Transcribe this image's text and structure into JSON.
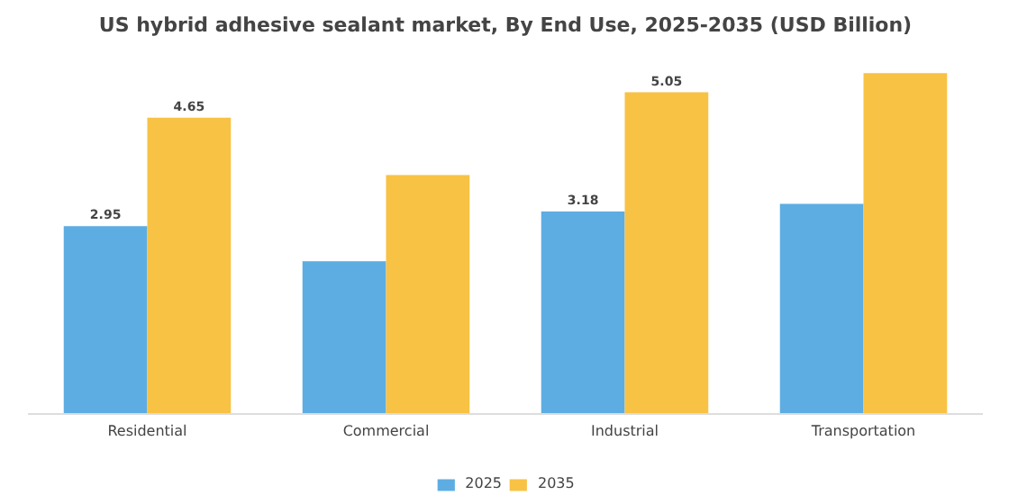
{
  "chart_data": {
    "type": "bar",
    "title": "US hybrid adhesive sealant market, By End Use, 2025-2035 (USD Billion)",
    "categories": [
      "Residential",
      "Commercial",
      "Industrial",
      "Transportation"
    ],
    "series": [
      {
        "name": "2025",
        "color": "#5dade2",
        "values": [
          2.95,
          2.4,
          3.18,
          3.3
        ],
        "value_labels": [
          "2.95",
          null,
          "3.18",
          null
        ]
      },
      {
        "name": "2035",
        "color": "#f8c244",
        "values": [
          4.65,
          3.75,
          5.05,
          5.35
        ],
        "value_labels": [
          "4.65",
          null,
          "5.05",
          null
        ]
      }
    ],
    "legend": "bottom",
    "grid": false,
    "tick_labels": "x"
  }
}
